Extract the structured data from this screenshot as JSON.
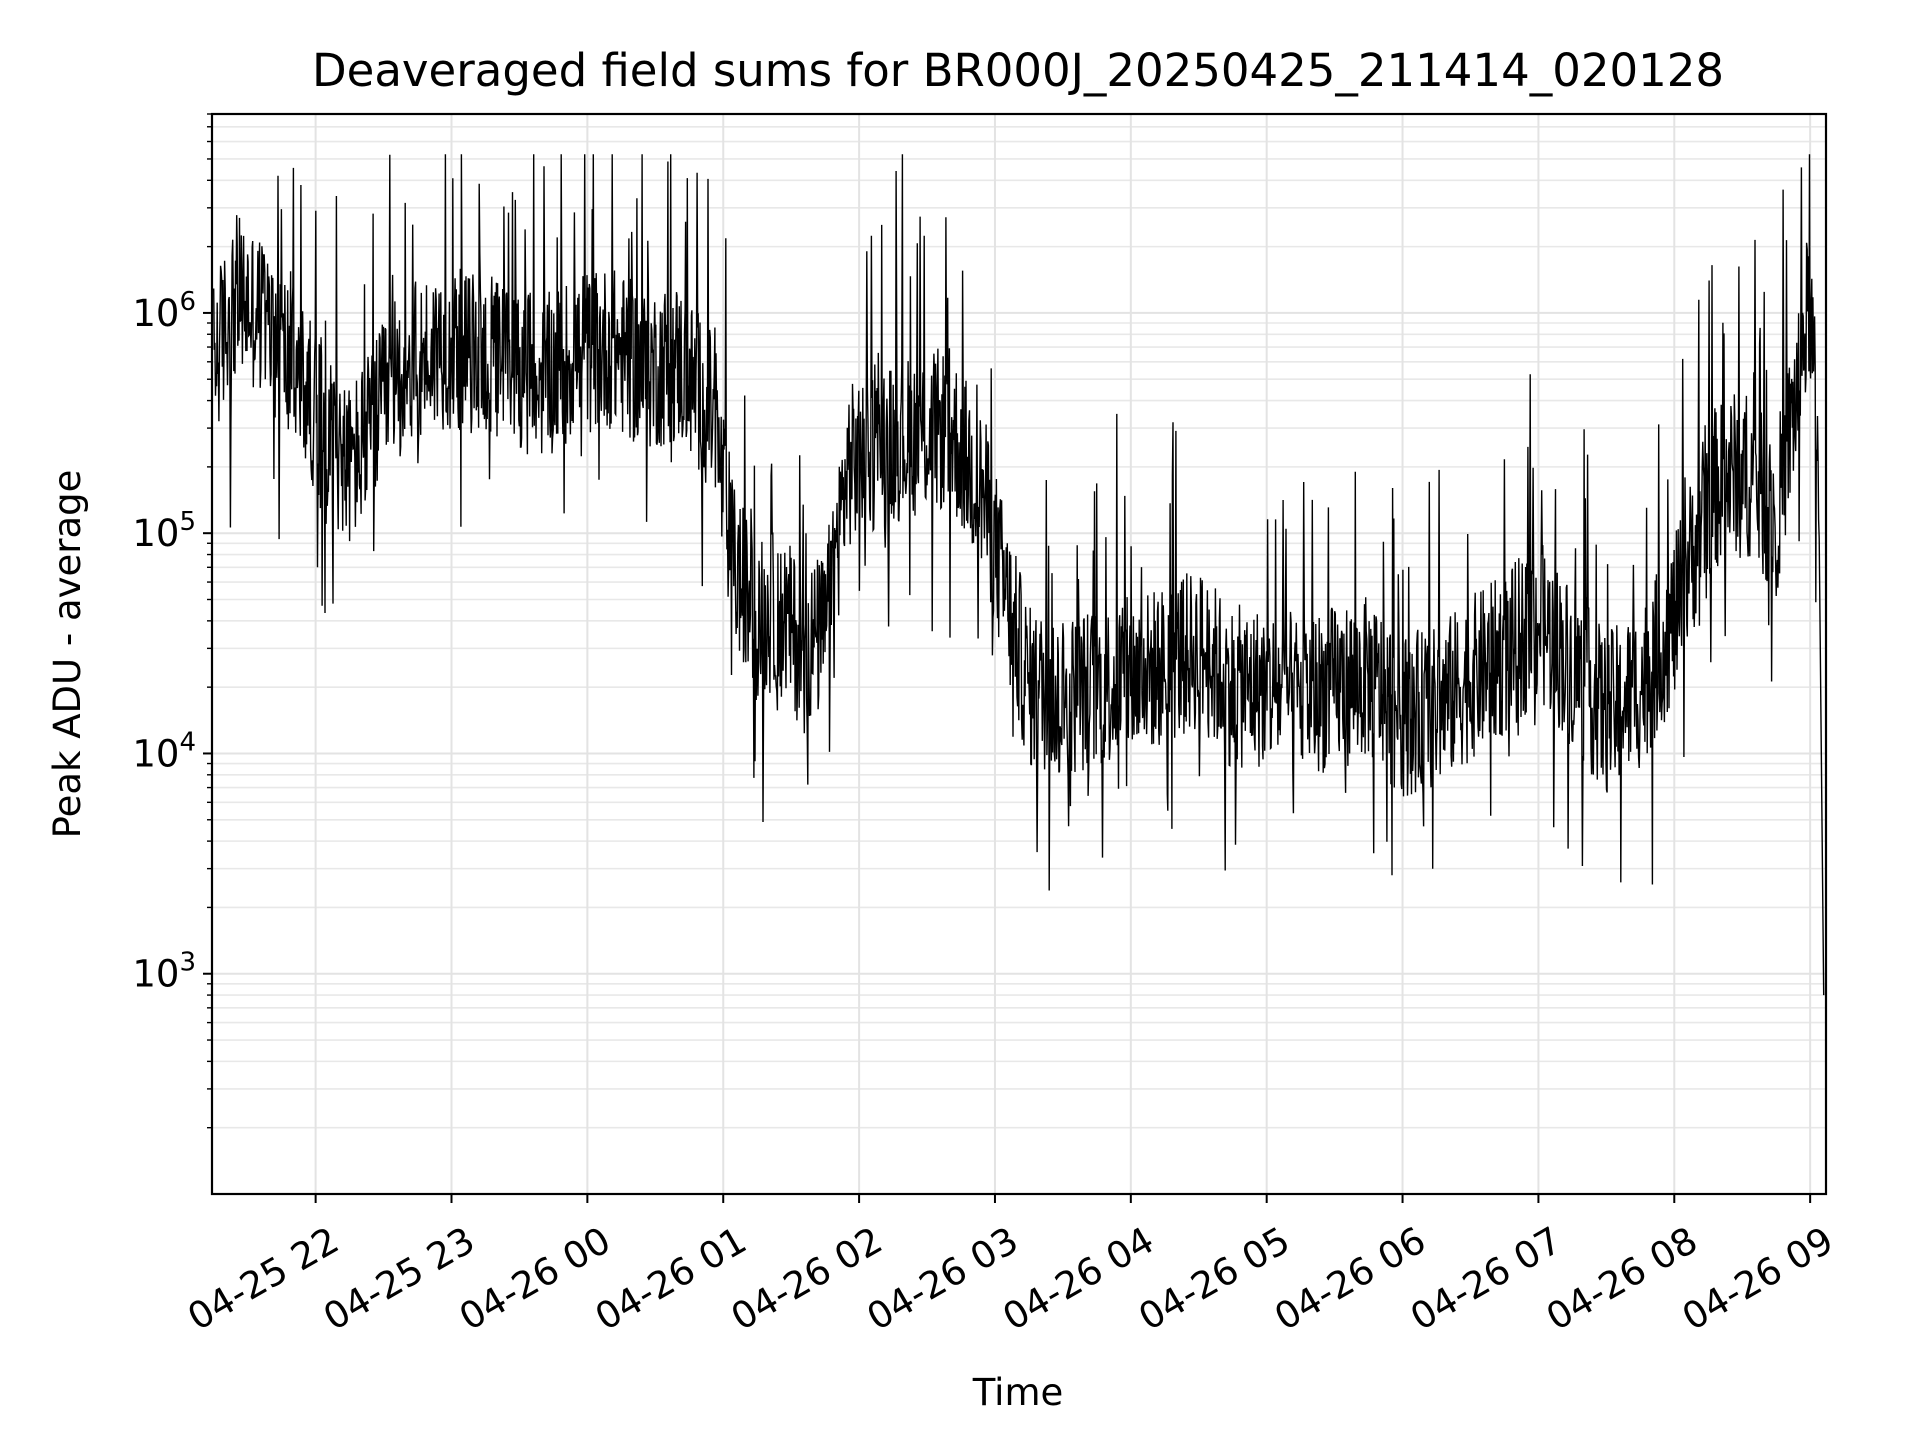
{
  "chart_data": {
    "type": "line",
    "title": "Deaveraged field sums for BR000J_20250425_211414_020128",
    "xlabel": "Time",
    "ylabel": "Peak ADU - average",
    "yscale": "log",
    "ylim": [
      100,
      8000000
    ],
    "xlim": [
      "2025-04-25 21:14:14",
      "2025-04-26 09:07:00"
    ],
    "grid": "major and minor",
    "line_color": "#000000",
    "x_ticks": [
      {
        "value": "2025-04-25 22:00",
        "label": "04-25 22"
      },
      {
        "value": "2025-04-25 23:00",
        "label": "04-25 23"
      },
      {
        "value": "2025-04-26 00:00",
        "label": "04-26 00"
      },
      {
        "value": "2025-04-26 01:00",
        "label": "04-26 01"
      },
      {
        "value": "2025-04-26 02:00",
        "label": "04-26 02"
      },
      {
        "value": "2025-04-26 03:00",
        "label": "04-26 03"
      },
      {
        "value": "2025-04-26 04:00",
        "label": "04-26 04"
      },
      {
        "value": "2025-04-26 05:00",
        "label": "04-26 05"
      },
      {
        "value": "2025-04-26 06:00",
        "label": "04-26 06"
      },
      {
        "value": "2025-04-26 07:00",
        "label": "04-26 07"
      },
      {
        "value": "2025-04-26 08:00",
        "label": "04-26 08"
      },
      {
        "value": "2025-04-26 09:00",
        "label": "04-26 09"
      }
    ],
    "y_ticks": [
      {
        "value": 1000,
        "base": "10",
        "exp": "3"
      },
      {
        "value": 10000,
        "base": "10",
        "exp": "4"
      },
      {
        "value": 100000,
        "base": "10",
        "exp": "5"
      },
      {
        "value": 1000000,
        "base": "10",
        "exp": "6"
      }
    ],
    "series": [
      {
        "x": [
          "2025-04-25 21:15",
          "2025-04-25 21:25",
          "2025-04-25 21:35",
          "2025-04-25 21:45",
          "2025-04-25 21:55",
          "2025-04-25 22:05",
          "2025-04-25 22:15",
          "2025-04-25 22:25",
          "2025-04-25 22:35",
          "2025-04-25 22:45",
          "2025-04-25 22:55",
          "2025-04-25 23:10",
          "2025-04-25 23:25",
          "2025-04-25 23:40",
          "2025-04-25 23:55",
          "2025-04-26 00:10",
          "2025-04-26 00:25",
          "2025-04-26 00:40",
          "2025-04-26 00:55",
          "2025-04-26 01:05",
          "2025-04-26 01:15",
          "2025-04-26 01:25",
          "2025-04-26 01:35",
          "2025-04-26 01:45",
          "2025-04-26 01:55",
          "2025-04-26 02:10",
          "2025-04-26 02:25",
          "2025-04-26 02:40",
          "2025-04-26 02:55",
          "2025-04-26 03:05",
          "2025-04-26 03:15",
          "2025-04-26 03:30",
          "2025-04-26 03:45",
          "2025-04-26 04:00",
          "2025-04-26 04:15",
          "2025-04-26 04:30",
          "2025-04-26 04:45",
          "2025-04-26 05:00",
          "2025-04-26 05:15",
          "2025-04-26 05:30",
          "2025-04-26 05:45",
          "2025-04-26 06:00",
          "2025-04-26 06:15",
          "2025-04-26 06:30",
          "2025-04-26 06:45",
          "2025-04-26 07:00",
          "2025-04-26 07:15",
          "2025-04-26 07:30",
          "2025-04-26 07:45",
          "2025-04-26 08:00",
          "2025-04-26 08:15",
          "2025-04-26 08:30",
          "2025-04-26 08:45",
          "2025-04-26 08:55",
          "2025-04-26 09:00",
          "2025-04-26 09:04",
          "2025-04-26 09:06"
        ],
        "y": [
          600000,
          1200000,
          1000000,
          700000,
          450000,
          300000,
          200000,
          300000,
          500000,
          600000,
          700000,
          650000,
          600000,
          500000,
          650000,
          700000,
          550000,
          600000,
          350000,
          70000,
          40000,
          45000,
          30000,
          35000,
          200000,
          250000,
          280000,
          300000,
          150000,
          50000,
          20000,
          18000,
          20000,
          22000,
          25000,
          30000,
          20000,
          20000,
          18000,
          20000,
          22000,
          15000,
          16000,
          22000,
          28000,
          40000,
          25000,
          15000,
          20000,
          40000,
          150000,
          200000,
          120000,
          500000,
          1200000,
          150000,
          800
        ]
      }
    ]
  }
}
